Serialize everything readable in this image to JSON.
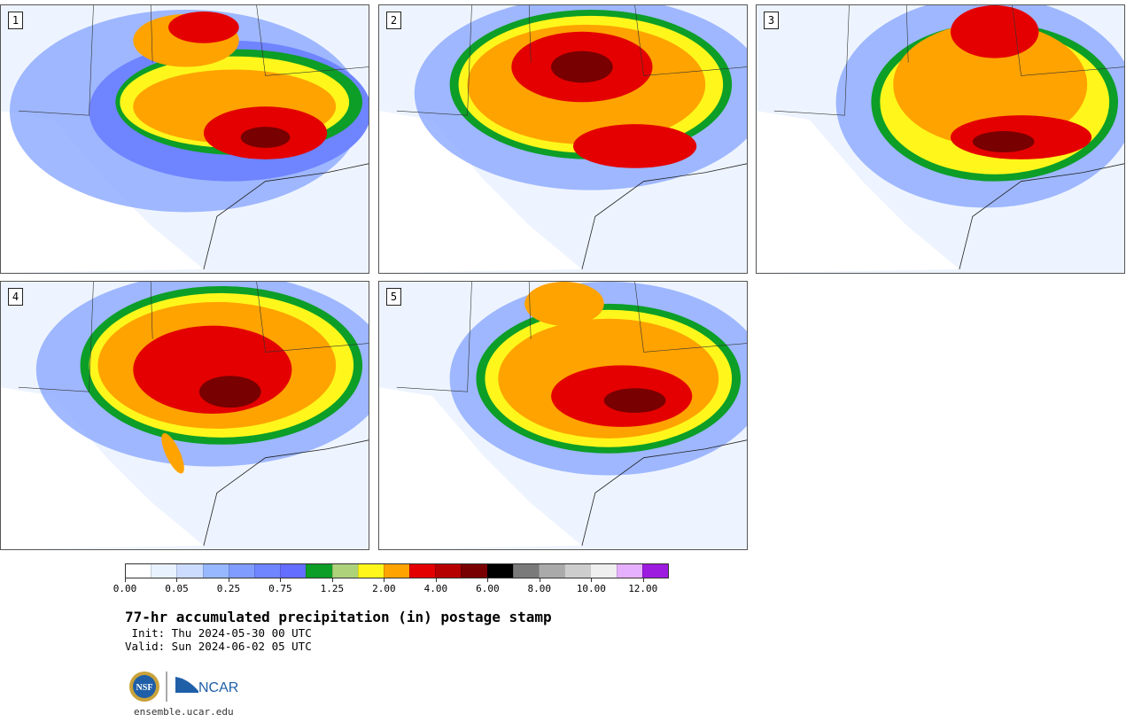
{
  "panels": [
    {
      "label": "1"
    },
    {
      "label": "2"
    },
    {
      "label": "3"
    },
    {
      "label": "4"
    },
    {
      "label": "5"
    }
  ],
  "colorbar": {
    "colors": [
      "#ffffff",
      "#e8f2ff",
      "#ccdcff",
      "#97b8ff",
      "#809cff",
      "#6f84ff",
      "#636dff",
      "#0c9e27",
      "#aed27a",
      "#fff71b",
      "#ffa300",
      "#e40000",
      "#b60000",
      "#780000",
      "#000000",
      "#7a7a7a",
      "#aaaaaa",
      "#cdcdcd",
      "#efefef",
      "#e6b0ff",
      "#9c1bdf"
    ],
    "labels": [
      "0.00",
      "0.05",
      "0.25",
      "0.75",
      "1.25",
      "2.00",
      "4.00",
      "6.00",
      "8.00",
      "10.00",
      "12.00"
    ],
    "label_index": [
      0,
      2,
      4,
      6,
      8,
      10,
      12,
      14,
      16,
      18,
      20
    ]
  },
  "title": "77-hr accumulated precipitation (in) postage stamp",
  "init": " Init: Thu 2024-05-30 00 UTC",
  "valid": "Valid: Sun 2024-06-02 05 UTC",
  "logos": {
    "nsf": "NSF",
    "ncar": "NCAR"
  },
  "footer_url": "ensemble.ucar.edu"
}
